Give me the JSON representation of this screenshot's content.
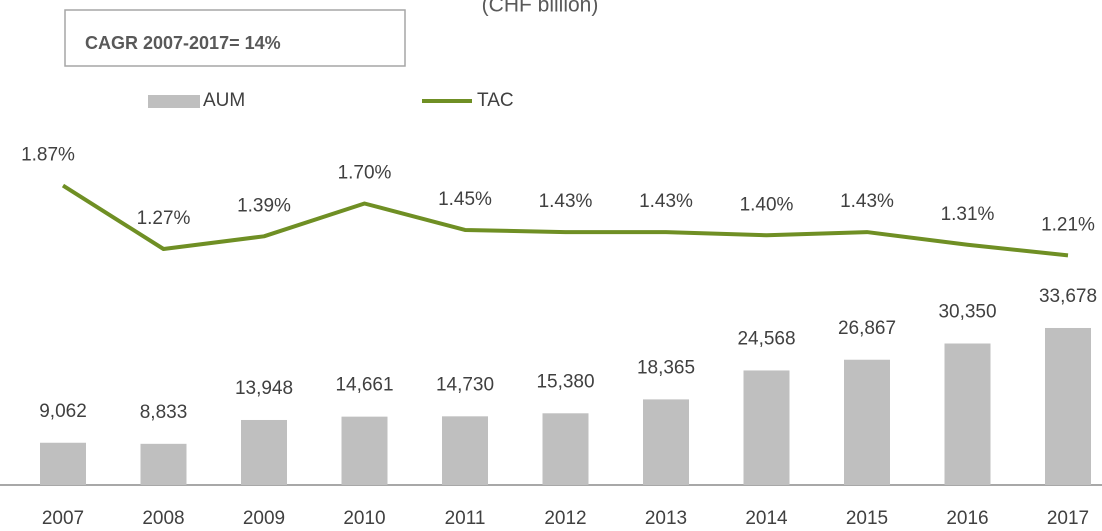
{
  "chart_data": {
    "type": "bar",
    "subtitle": "(CHF billion)",
    "annotation": "CAGR 2007-2017= 14%",
    "categories": [
      "2007",
      "2008",
      "2009",
      "2010",
      "2011",
      "2012",
      "2013",
      "2014",
      "2015",
      "2016",
      "2017"
    ],
    "series": [
      {
        "name": "AUM",
        "type": "bar",
        "color": "#bfbfbf",
        "values": [
          9062,
          8833,
          13948,
          14661,
          14730,
          15380,
          18365,
          24568,
          26867,
          30350,
          33678
        ],
        "value_labels": [
          "9,062",
          "8,833",
          "13,948",
          "14,661",
          "14,730",
          "15,380",
          "18,365",
          "24,568",
          "26,867",
          "30,350",
          "33,678"
        ]
      },
      {
        "name": "TAC",
        "type": "line",
        "axis": "y2",
        "color": "#6f8f24",
        "values": [
          1.87,
          1.27,
          1.39,
          1.7,
          1.45,
          1.43,
          1.43,
          1.4,
          1.43,
          1.31,
          1.21
        ],
        "value_labels": [
          "1.87%",
          "1.27%",
          "1.39%",
          "1.70%",
          "1.45%",
          "1.43%",
          "1.43%",
          "1.40%",
          "1.43%",
          "1.31%",
          "1.21%"
        ]
      }
    ],
    "ylim": [
      0,
      74000
    ],
    "y2lim": [
      -0.96,
      2.3
    ],
    "legend": "top-left"
  }
}
